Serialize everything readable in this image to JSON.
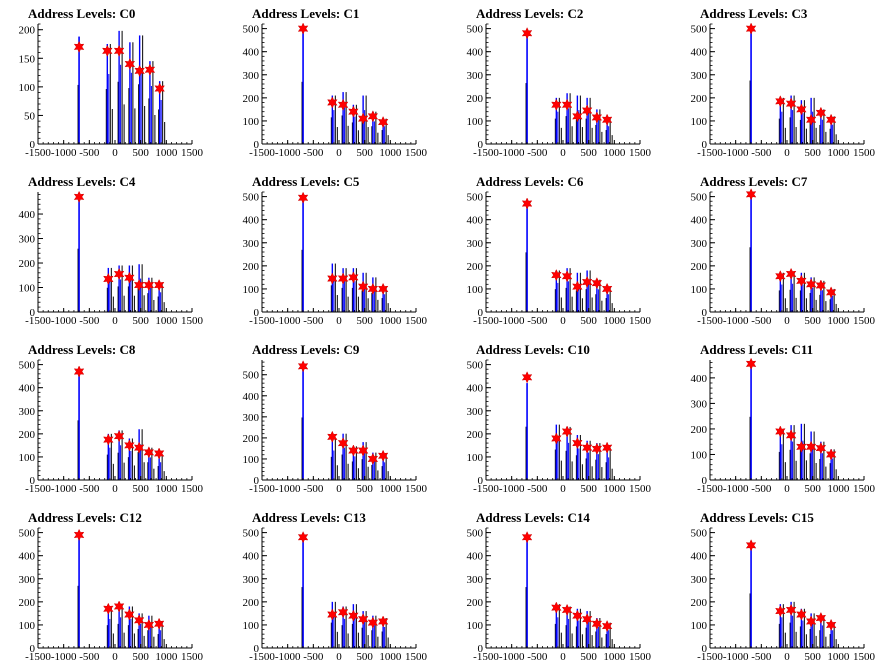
{
  "chart_data": [
    {
      "type": "bar",
      "title": "Address Levels: C0",
      "xlim": [
        -1500,
        1500
      ],
      "ylim": [
        0,
        210
      ],
      "xticks": [
        -1500,
        -1000,
        -500,
        0,
        500,
        1000,
        1500
      ],
      "yticks": [
        0,
        50,
        100,
        150,
        200
      ],
      "peaks": [
        {
          "x": -700,
          "y": 188,
          "marker": 170
        },
        {
          "x": -150,
          "y": 175,
          "marker": 163
        },
        {
          "x": 80,
          "y": 198,
          "marker": 163
        },
        {
          "x": 290,
          "y": 178,
          "marker": 140
        },
        {
          "x": 480,
          "y": 190,
          "marker": 128
        },
        {
          "x": 680,
          "y": 145,
          "marker": 130
        },
        {
          "x": 870,
          "y": 110,
          "marker": 97
        }
      ]
    },
    {
      "type": "bar",
      "title": "Address Levels: C1",
      "xlim": [
        -1500,
        1500
      ],
      "ylim": [
        0,
        520
      ],
      "xticks": [
        -1500,
        -1000,
        -500,
        0,
        500,
        1000,
        1500
      ],
      "yticks": [
        0,
        100,
        200,
        300,
        400,
        500
      ],
      "peaks": [
        {
          "x": -700,
          "y": 490,
          "marker": 500
        },
        {
          "x": -130,
          "y": 210,
          "marker": 180
        },
        {
          "x": 80,
          "y": 225,
          "marker": 170
        },
        {
          "x": 280,
          "y": 170,
          "marker": 140
        },
        {
          "x": 470,
          "y": 210,
          "marker": 110
        },
        {
          "x": 660,
          "y": 140,
          "marker": 120
        },
        {
          "x": 860,
          "y": 110,
          "marker": 95
        }
      ]
    },
    {
      "type": "bar",
      "title": "Address Levels: C2",
      "xlim": [
        -1500,
        1500
      ],
      "ylim": [
        0,
        520
      ],
      "xticks": [
        -1500,
        -1000,
        -500,
        0,
        500,
        1000,
        1500
      ],
      "yticks": [
        0,
        100,
        200,
        300,
        400,
        500
      ],
      "peaks": [
        {
          "x": -700,
          "y": 480,
          "marker": 480
        },
        {
          "x": -130,
          "y": 200,
          "marker": 170
        },
        {
          "x": 80,
          "y": 220,
          "marker": 170
        },
        {
          "x": 280,
          "y": 210,
          "marker": 120
        },
        {
          "x": 470,
          "y": 200,
          "marker": 145
        },
        {
          "x": 660,
          "y": 150,
          "marker": 115
        },
        {
          "x": 860,
          "y": 110,
          "marker": 105
        }
      ]
    },
    {
      "type": "bar",
      "title": "Address Levels: C3",
      "xlim": [
        -1500,
        1500
      ],
      "ylim": [
        0,
        520
      ],
      "xticks": [
        -1500,
        -1000,
        -500,
        0,
        500,
        1000,
        1500
      ],
      "yticks": [
        0,
        100,
        200,
        300,
        400,
        500
      ],
      "peaks": [
        {
          "x": -700,
          "y": 500,
          "marker": 500
        },
        {
          "x": -130,
          "y": 200,
          "marker": 185
        },
        {
          "x": 80,
          "y": 210,
          "marker": 175
        },
        {
          "x": 280,
          "y": 190,
          "marker": 150
        },
        {
          "x": 470,
          "y": 200,
          "marker": 105
        },
        {
          "x": 660,
          "y": 150,
          "marker": 135
        },
        {
          "x": 860,
          "y": 120,
          "marker": 105
        }
      ]
    },
    {
      "type": "bar",
      "title": "Address Levels: C4",
      "xlim": [
        -1500,
        1500
      ],
      "ylim": [
        0,
        490
      ],
      "xticks": [
        -1500,
        -1000,
        -500,
        0,
        500,
        1000,
        1500
      ],
      "yticks": [
        0,
        100,
        200,
        300,
        400
      ],
      "peaks": [
        {
          "x": -700,
          "y": 470,
          "marker": 470
        },
        {
          "x": -130,
          "y": 180,
          "marker": 135
        },
        {
          "x": 80,
          "y": 190,
          "marker": 155
        },
        {
          "x": 280,
          "y": 190,
          "marker": 140
        },
        {
          "x": 470,
          "y": 195,
          "marker": 110
        },
        {
          "x": 660,
          "y": 140,
          "marker": 110
        },
        {
          "x": 860,
          "y": 115,
          "marker": 110
        }
      ]
    },
    {
      "type": "bar",
      "title": "Address Levels: C5",
      "xlim": [
        -1500,
        1500
      ],
      "ylim": [
        0,
        520
      ],
      "xticks": [
        -1500,
        -1000,
        -500,
        0,
        500,
        1000,
        1500
      ],
      "yticks": [
        0,
        100,
        200,
        300,
        400,
        500
      ],
      "peaks": [
        {
          "x": -700,
          "y": 490,
          "marker": 495
        },
        {
          "x": -130,
          "y": 210,
          "marker": 145
        },
        {
          "x": 80,
          "y": 190,
          "marker": 145
        },
        {
          "x": 280,
          "y": 190,
          "marker": 150
        },
        {
          "x": 470,
          "y": 170,
          "marker": 110
        },
        {
          "x": 660,
          "y": 150,
          "marker": 100
        },
        {
          "x": 860,
          "y": 110,
          "marker": 100
        }
      ]
    },
    {
      "type": "bar",
      "title": "Address Levels: C6",
      "xlim": [
        -1500,
        1500
      ],
      "ylim": [
        0,
        520
      ],
      "xticks": [
        -1500,
        -1000,
        -500,
        0,
        500,
        1000,
        1500
      ],
      "yticks": [
        0,
        100,
        200,
        300,
        400,
        500
      ],
      "peaks": [
        {
          "x": -700,
          "y": 470,
          "marker": 470
        },
        {
          "x": -130,
          "y": 180,
          "marker": 160
        },
        {
          "x": 80,
          "y": 190,
          "marker": 155
        },
        {
          "x": 280,
          "y": 170,
          "marker": 110
        },
        {
          "x": 470,
          "y": 180,
          "marker": 130
        },
        {
          "x": 660,
          "y": 140,
          "marker": 125
        },
        {
          "x": 860,
          "y": 110,
          "marker": 100
        }
      ]
    },
    {
      "type": "bar",
      "title": "Address Levels: C7",
      "xlim": [
        -1500,
        1500
      ],
      "ylim": [
        0,
        520
      ],
      "xticks": [
        -1500,
        -1000,
        -500,
        0,
        500,
        1000,
        1500
      ],
      "yticks": [
        0,
        100,
        200,
        300,
        400,
        500
      ],
      "peaks": [
        {
          "x": -700,
          "y": 510,
          "marker": 510
        },
        {
          "x": -130,
          "y": 170,
          "marker": 155
        },
        {
          "x": 80,
          "y": 175,
          "marker": 165
        },
        {
          "x": 280,
          "y": 170,
          "marker": 135
        },
        {
          "x": 470,
          "y": 150,
          "marker": 120
        },
        {
          "x": 660,
          "y": 135,
          "marker": 115
        },
        {
          "x": 860,
          "y": 100,
          "marker": 85
        }
      ]
    },
    {
      "type": "bar",
      "title": "Address Levels: C8",
      "xlim": [
        -1500,
        1500
      ],
      "ylim": [
        0,
        520
      ],
      "xticks": [
        -1500,
        -1000,
        -500,
        0,
        500,
        1000,
        1500
      ],
      "yticks": [
        0,
        100,
        200,
        300,
        400,
        500
      ],
      "peaks": [
        {
          "x": -700,
          "y": 470,
          "marker": 470
        },
        {
          "x": -130,
          "y": 200,
          "marker": 175
        },
        {
          "x": 80,
          "y": 215,
          "marker": 190
        },
        {
          "x": 280,
          "y": 180,
          "marker": 150
        },
        {
          "x": 470,
          "y": 220,
          "marker": 140
        },
        {
          "x": 660,
          "y": 140,
          "marker": 120
        },
        {
          "x": 860,
          "y": 110,
          "marker": 115
        }
      ]
    },
    {
      "type": "bar",
      "title": "Address Levels: C9",
      "xlim": [
        -1500,
        1500
      ],
      "ylim": [
        0,
        570
      ],
      "xticks": [
        -1500,
        -1000,
        -500,
        0,
        500,
        1000,
        1500
      ],
      "yticks": [
        0,
        100,
        200,
        300,
        400,
        500
      ],
      "peaks": [
        {
          "x": -700,
          "y": 540,
          "marker": 540
        },
        {
          "x": -130,
          "y": 200,
          "marker": 205
        },
        {
          "x": 80,
          "y": 220,
          "marker": 175
        },
        {
          "x": 280,
          "y": 160,
          "marker": 140
        },
        {
          "x": 470,
          "y": 180,
          "marker": 140
        },
        {
          "x": 660,
          "y": 130,
          "marker": 100
        },
        {
          "x": 860,
          "y": 120,
          "marker": 115
        }
      ]
    },
    {
      "type": "bar",
      "title": "Address Levels: C10",
      "xlim": [
        -1500,
        1500
      ],
      "ylim": [
        0,
        520
      ],
      "xticks": [
        -1500,
        -1000,
        -500,
        0,
        500,
        1000,
        1500
      ],
      "yticks": [
        0,
        100,
        200,
        300,
        400,
        500
      ],
      "peaks": [
        {
          "x": -700,
          "y": 420,
          "marker": 445
        },
        {
          "x": -130,
          "y": 240,
          "marker": 180
        },
        {
          "x": 80,
          "y": 230,
          "marker": 210
        },
        {
          "x": 280,
          "y": 195,
          "marker": 160
        },
        {
          "x": 470,
          "y": 170,
          "marker": 140
        },
        {
          "x": 660,
          "y": 160,
          "marker": 135
        },
        {
          "x": 860,
          "y": 140,
          "marker": 140
        }
      ]
    },
    {
      "type": "bar",
      "title": "Address Levels: C11",
      "xlim": [
        -1500,
        1500
      ],
      "ylim": [
        0,
        470
      ],
      "xticks": [
        -1500,
        -1000,
        -500,
        0,
        500,
        1000,
        1500
      ],
      "yticks": [
        0,
        100,
        200,
        300,
        400
      ],
      "peaks": [
        {
          "x": -700,
          "y": 450,
          "marker": 455
        },
        {
          "x": -130,
          "y": 200,
          "marker": 190
        },
        {
          "x": 80,
          "y": 215,
          "marker": 175
        },
        {
          "x": 280,
          "y": 220,
          "marker": 130
        },
        {
          "x": 470,
          "y": 190,
          "marker": 130
        },
        {
          "x": 660,
          "y": 150,
          "marker": 125
        },
        {
          "x": 860,
          "y": 120,
          "marker": 100
        }
      ]
    },
    {
      "type": "bar",
      "title": "Address Levels: C12",
      "xlim": [
        -1500,
        1500
      ],
      "ylim": [
        0,
        520
      ],
      "xticks": [
        -1500,
        -1000,
        -500,
        0,
        500,
        1000,
        1500
      ],
      "yticks": [
        0,
        100,
        200,
        300,
        400,
        500
      ],
      "peaks": [
        {
          "x": -700,
          "y": 490,
          "marker": 490
        },
        {
          "x": -130,
          "y": 180,
          "marker": 170
        },
        {
          "x": 80,
          "y": 190,
          "marker": 180
        },
        {
          "x": 280,
          "y": 180,
          "marker": 145
        },
        {
          "x": 470,
          "y": 150,
          "marker": 120
        },
        {
          "x": 660,
          "y": 140,
          "marker": 100
        },
        {
          "x": 860,
          "y": 110,
          "marker": 105
        }
      ]
    },
    {
      "type": "bar",
      "title": "Address Levels: C13",
      "xlim": [
        -1500,
        1500
      ],
      "ylim": [
        0,
        520
      ],
      "xticks": [
        -1500,
        -1000,
        -500,
        0,
        500,
        1000,
        1500
      ],
      "yticks": [
        0,
        100,
        200,
        300,
        400,
        500
      ],
      "peaks": [
        {
          "x": -700,
          "y": 480,
          "marker": 480
        },
        {
          "x": -130,
          "y": 200,
          "marker": 145
        },
        {
          "x": 80,
          "y": 180,
          "marker": 155
        },
        {
          "x": 280,
          "y": 190,
          "marker": 140
        },
        {
          "x": 470,
          "y": 160,
          "marker": 125
        },
        {
          "x": 660,
          "y": 140,
          "marker": 110
        },
        {
          "x": 860,
          "y": 130,
          "marker": 115
        }
      ]
    },
    {
      "type": "bar",
      "title": "Address Levels: C14",
      "xlim": [
        -1500,
        1500
      ],
      "ylim": [
        0,
        520
      ],
      "xticks": [
        -1500,
        -1000,
        -500,
        0,
        500,
        1000,
        1500
      ],
      "yticks": [
        0,
        100,
        200,
        300,
        400,
        500
      ],
      "peaks": [
        {
          "x": -700,
          "y": 480,
          "marker": 480
        },
        {
          "x": -130,
          "y": 190,
          "marker": 175
        },
        {
          "x": 80,
          "y": 180,
          "marker": 165
        },
        {
          "x": 280,
          "y": 170,
          "marker": 140
        },
        {
          "x": 470,
          "y": 160,
          "marker": 125
        },
        {
          "x": 660,
          "y": 130,
          "marker": 105
        },
        {
          "x": 860,
          "y": 110,
          "marker": 95
        }
      ]
    },
    {
      "type": "bar",
      "title": "Address Levels: C15",
      "xlim": [
        -1500,
        1500
      ],
      "ylim": [
        0,
        520
      ],
      "xticks": [
        -1500,
        -1000,
        -500,
        0,
        500,
        1000,
        1500
      ],
      "yticks": [
        0,
        100,
        200,
        300,
        400,
        500
      ],
      "peaks": [
        {
          "x": -700,
          "y": 430,
          "marker": 445
        },
        {
          "x": -130,
          "y": 190,
          "marker": 160
        },
        {
          "x": 80,
          "y": 200,
          "marker": 165
        },
        {
          "x": 280,
          "y": 170,
          "marker": 145
        },
        {
          "x": 470,
          "y": 150,
          "marker": 115
        },
        {
          "x": 660,
          "y": 140,
          "marker": 130
        },
        {
          "x": 860,
          "y": 110,
          "marker": 100
        }
      ]
    }
  ],
  "colors": {
    "bar": "#0000ff",
    "overflow": "#000000",
    "marker": "#ff0000",
    "axis": "#000000"
  }
}
